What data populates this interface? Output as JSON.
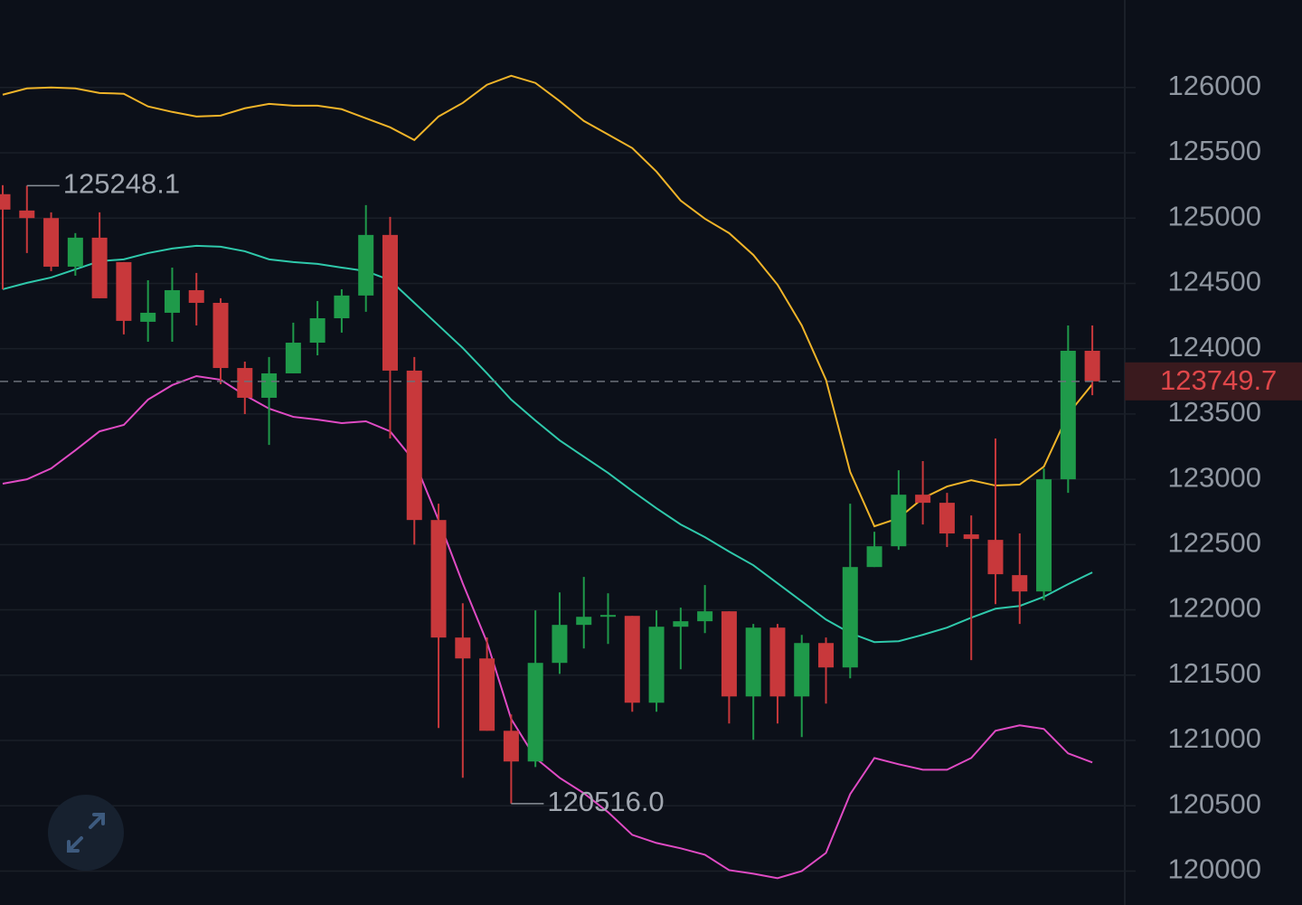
{
  "chart_data": {
    "type": "candlestick",
    "open": [
      125183,
      125058,
      125000,
      124628,
      124850,
      124663,
      124206,
      124275,
      124448,
      124351,
      123852,
      123624,
      123811,
      124046,
      124233,
      124407,
      124871,
      123832,
      122688,
      121788,
      121628,
      121074,
      120839,
      121594,
      121885,
      121947,
      121954,
      121289,
      121871,
      121913,
      121989,
      121337,
      121864,
      121337,
      121746,
      121559,
      122328,
      122487,
      122882,
      122820,
      122578,
      122536,
      122266,
      122141,
      123000,
      123984
    ],
    "high": [
      125252,
      125248.1,
      125044,
      124885,
      125044,
      124663,
      124524,
      124621,
      124580,
      124386,
      123901,
      123936,
      124199,
      124365,
      124455,
      125099,
      125009,
      123936,
      122813,
      122051,
      121788,
      121199,
      121996,
      122134,
      122252,
      122127,
      121954,
      121996,
      122017,
      122190,
      121989,
      121892,
      121892,
      121808,
      121788,
      122813,
      122598,
      123069,
      123139,
      122896,
      122723,
      123312,
      122585,
      123083,
      124178,
      124178
    ],
    "low": [
      124455,
      124732,
      124594,
      124559,
      124386,
      124109,
      124053,
      124053,
      124178,
      123728,
      123499,
      123263,
      123811,
      123949,
      124123,
      124282,
      123312,
      122500,
      121095,
      120714,
      121074,
      120516.0,
      120797,
      121510,
      121704,
      121739,
      121220,
      121220,
      121545,
      121822,
      121130,
      121005,
      121130,
      121026,
      121282,
      121476,
      122328,
      122460,
      122654,
      122481,
      121615,
      122044,
      121892,
      122072,
      122896,
      123644
    ],
    "close": [
      125065,
      125000,
      124628,
      124850,
      124386,
      124213,
      124275,
      124448,
      124351,
      123852,
      123624,
      123811,
      124046,
      124233,
      124407,
      124871,
      123832,
      122688,
      121788,
      121628,
      121074,
      120839,
      121594,
      121885,
      121947,
      121961,
      121289,
      121871,
      121913,
      121989,
      121337,
      121864,
      121337,
      121746,
      121559,
      122328,
      122487,
      122882,
      122820,
      122585,
      122543,
      122273,
      122141,
      123000,
      123984,
      123749.7
    ],
    "up_color": "#1f9a4a",
    "down_color": "#c8383b",
    "series": [
      {
        "color": "#f0b429",
        "values": [
          125945,
          125993,
          126000,
          125993,
          125958,
          125952,
          125855,
          125813,
          125778,
          125785,
          125841,
          125875,
          125861,
          125861,
          125834,
          125764,
          125695,
          125598,
          125778,
          125882,
          126021,
          126090,
          126035,
          125896,
          125744,
          125640,
          125536,
          125356,
          125134,
          124995,
          124885,
          124718,
          124490,
          124178,
          123762,
          123056,
          122640,
          122702,
          122855,
          122945,
          122993,
          122952,
          122959,
          123097,
          123499,
          123728
        ]
      },
      {
        "color": "#2fc9ab",
        "values": [
          124455,
          124504,
          124545,
          124607,
          124670,
          124684,
          124732,
          124767,
          124788,
          124781,
          124746,
          124684,
          124663,
          124649,
          124621,
          124594,
          124524,
          124351,
          124178,
          124005,
          123811,
          123610,
          123450,
          123298,
          123173,
          123049,
          122910,
          122778,
          122654,
          122557,
          122446,
          122342,
          122203,
          122065,
          121926,
          121822,
          121753,
          121760,
          121809,
          121864,
          121940,
          122009,
          122030,
          122100,
          122197,
          122287
        ]
      },
      {
        "color": "#e04bc4",
        "values": [
          122966,
          123000,
          123083,
          123222,
          123367,
          123416,
          123610,
          123721,
          123790,
          123762,
          123644,
          123541,
          123478,
          123457,
          123430,
          123444,
          123367,
          123139,
          122688,
          122203,
          121753,
          121164,
          120866,
          120714,
          120596,
          120451,
          120277,
          120215,
          120174,
          120125,
          120007,
          119980,
          119945,
          120000,
          120139,
          120589,
          120866,
          120818,
          120776,
          120776,
          120866,
          121074,
          121116,
          121088,
          120901,
          120832
        ]
      }
    ],
    "ylim": [
      119740,
      126670
    ],
    "yticks": [
      120000,
      120500,
      121000,
      121500,
      122000,
      122500,
      123000,
      123500,
      124000,
      124500,
      125000,
      125500,
      126000
    ],
    "grid": true,
    "annotations": [
      {
        "value": 125248.1,
        "label": "125248.1"
      },
      {
        "value": 120516.0,
        "label": "120516.0"
      }
    ],
    "last_price": {
      "value": 123749.7,
      "label": "123749.7"
    }
  }
}
